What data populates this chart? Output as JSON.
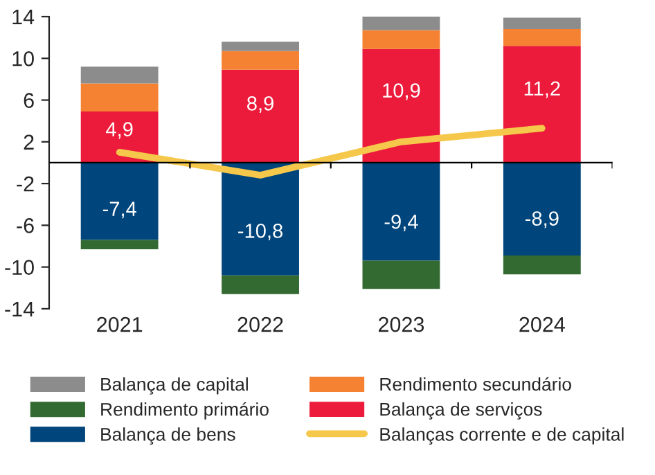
{
  "chart_data": {
    "type": "bar",
    "stacked": true,
    "categories": [
      "2021",
      "2022",
      "2023",
      "2024"
    ],
    "ylim": [
      -14,
      14
    ],
    "yticks": [
      {
        "value": -14,
        "label": "-14"
      },
      {
        "value": -10,
        "label": "-10"
      },
      {
        "value": -6,
        "label": "-6"
      },
      {
        "value": -2,
        "label": "-2"
      },
      2,
      6,
      10,
      14
    ],
    "legend": "bottom",
    "grid": false,
    "series": [
      {
        "name": "Balança de bens",
        "color": "#00457c",
        "values": [
          -7.4,
          -10.8,
          -9.4,
          -8.9
        ],
        "value_labels": [
          "-7,4",
          "-10,8",
          "-9,4",
          "-8,9"
        ]
      },
      {
        "name": "Rendimento primário",
        "color": "#336a32",
        "values": [
          -0.9,
          -1.8,
          -2.7,
          -1.8
        ]
      },
      {
        "name": "Balança de serviços",
        "color": "#ec1b3b",
        "values": [
          4.9,
          8.9,
          10.9,
          11.2
        ],
        "value_labels": [
          "4,9",
          "8,9",
          "10,9",
          "11,2"
        ]
      },
      {
        "name": "Rendimento secundário",
        "color": "#f58233",
        "values": [
          2.7,
          1.8,
          1.8,
          1.6
        ]
      },
      {
        "name": "Balança de capital",
        "color": "#8c8c8c",
        "values": [
          1.6,
          0.9,
          1.3,
          1.1
        ]
      },
      {
        "name": "Balanças corrente e de capital",
        "type": "line",
        "color": "#f5c84c",
        "values": [
          1.0,
          -1.2,
          2.0,
          3.3
        ]
      }
    ]
  }
}
